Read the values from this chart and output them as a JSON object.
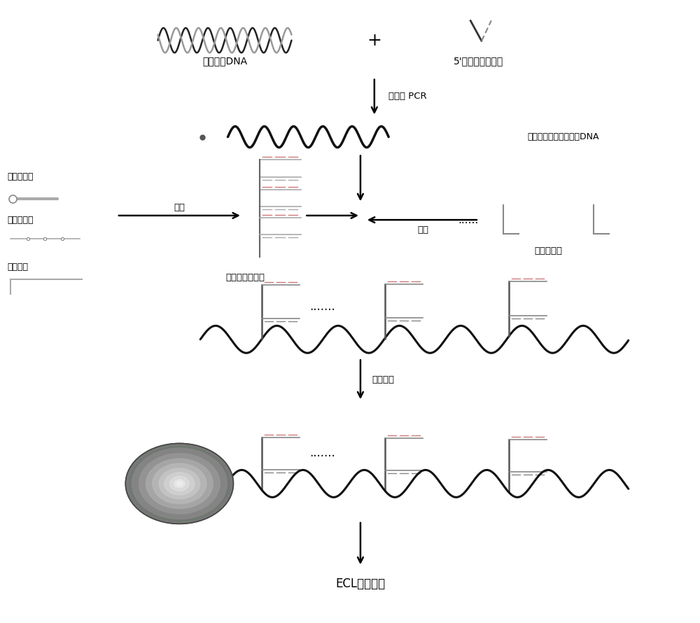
{
  "bg_color": "#ffffff",
  "label_dna_extract": "提取目标DNA",
  "label_biotin_primer": "5'修饰生物素引物",
  "label_pcr": "不对称 PCR",
  "label_ssDNA": "生物素标记的单链目标DNA",
  "label_nail_probe": "钉标记探针",
  "label_pre_amp": "前放大探针",
  "label_hybridize": "杂交",
  "label_amp_probe": "放大探针",
  "label_universal_probe": "通用放大探针组",
  "label_capture_probe": "捕获探针组",
  "label_hybridize2": "杂交",
  "label_magnetic": "磁珠孵育",
  "label_ecl": "ECL信号检测",
  "label_dots": ".......",
  "label_dots2": "......."
}
